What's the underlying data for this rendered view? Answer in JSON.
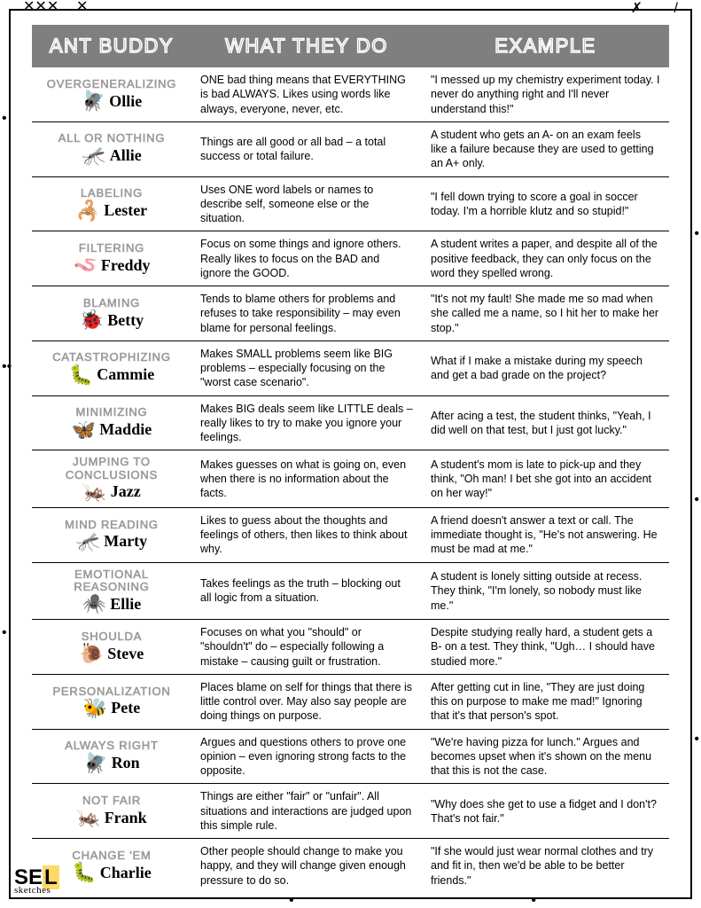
{
  "headers": {
    "col1": "ANT BUDDY",
    "col2": "WHAT THEY DO",
    "col3": "EXAMPLE"
  },
  "colors": {
    "header_bg": "#7f7f7f",
    "header_text": "#ffffff",
    "distortion_text": "#9a9a9a",
    "body_text": "#000000",
    "border": "#000000"
  },
  "rows": [
    {
      "distortion": "OVERGENERALIZING",
      "name": "Ollie",
      "icon": "🪰",
      "desc": "ONE bad thing means that EVERYTHING is bad ALWAYS. Likes using words like always, everyone, never, etc.",
      "example": "\"I messed up my chemistry experiment today. I never do anything right and I'll never understand this!\""
    },
    {
      "distortion": "ALL OR NOTHING",
      "name": "Allie",
      "icon": "🦟",
      "desc": "Things are all good or all bad – a total success or total failure.",
      "example": "A student who gets an A- on an exam feels like a failure because they are used to getting an A+ only."
    },
    {
      "distortion": "LABELING",
      "name": "Lester",
      "icon": "🦂",
      "desc": "Uses ONE word labels or names to describe self, someone else or the situation.",
      "example": "\"I fell down trying to score a goal in soccer today. I'm a horrible klutz and so stupid!\""
    },
    {
      "distortion": "FILTERING",
      "name": "Freddy",
      "icon": "🪱",
      "desc": "Focus on some things and ignore others. Really likes to focus on the BAD and ignore the GOOD.",
      "example": "A student writes a paper, and despite all of the positive feedback, they can only focus on the word they spelled wrong."
    },
    {
      "distortion": "BLAMING",
      "name": "Betty",
      "icon": "🐞",
      "desc": "Tends to blame others for problems and refuses to take responsibility – may even blame for personal feelings.",
      "example": "\"It's not my fault! She made me so mad when she called me a name, so I hit her to make her stop.\""
    },
    {
      "distortion": "CATASTROPHIZING",
      "name": "Cammie",
      "icon": "🐛",
      "desc": "Makes SMALL problems seem like BIG problems – especially focusing on the \"worst case scenario\".",
      "example": "What if I make a mistake during my speech and get a bad grade on the project?"
    },
    {
      "distortion": "MINIMIZING",
      "name": "Maddie",
      "icon": "🦋",
      "desc": "Makes BIG deals seem like LITTLE deals – really likes to try to make you ignore your feelings.",
      "example": "After acing a test, the student thinks, \"Yeah, I did well on that test, but I just got lucky.\""
    },
    {
      "distortion": "JUMPING TO CONCLUSIONS",
      "name": "Jazz",
      "icon": "🦗",
      "desc": "Makes guesses on what is going on, even when there is no information about the facts.",
      "example": "A student's mom is late to pick-up and they think, \"Oh man! I bet she got into an accident on her way!\""
    },
    {
      "distortion": "MIND READING",
      "name": "Marty",
      "icon": "🦟",
      "desc": "Likes to guess about the thoughts and feelings of others, then likes to think about why.",
      "example": "A friend doesn't answer a text or call. The immediate thought is, \"He's not answering. He must be mad at me.\""
    },
    {
      "distortion": "EMOTIONAL REASONING",
      "name": "Ellie",
      "icon": "🕷️",
      "desc": "Takes feelings as the truth – blocking out all logic from a situation.",
      "example": "A student is lonely sitting outside at recess. They think, \"I'm lonely, so nobody must like me.\""
    },
    {
      "distortion": "SHOULDA",
      "name": "Steve",
      "icon": "🐌",
      "desc": "Focuses on what you \"should\" or \"shouldn't\" do – especially following a mistake – causing guilt or frustration.",
      "example": "Despite studying really hard, a student gets a B- on a test. They think, \"Ugh… I should have studied more.\""
    },
    {
      "distortion": "PERSONALIZATION",
      "name": "Pete",
      "icon": "🐝",
      "desc": "Places blame on self for things that there is little control over. May also say people are doing things on purpose.",
      "example": "After getting cut in line, \"They are just doing this on purpose to make me mad!\" Ignoring that it's that person's spot."
    },
    {
      "distortion": "ALWAYS RIGHT",
      "name": "Ron",
      "icon": "🪰",
      "desc": "Argues and questions others to prove one opinion – even ignoring strong facts to the opposite.",
      "example": "\"We're having pizza for lunch.\" Argues and becomes upset when it's shown on the menu that this is not the case."
    },
    {
      "distortion": "NOT FAIR",
      "name": "Frank",
      "icon": "🦗",
      "desc": "Things are either \"fair\" or \"unfair\". All situations and interactions are judged upon this simple rule.",
      "example": "\"Why does she get to use a fidget and I don't? That's not fair.\""
    },
    {
      "distortion": "CHANGE 'EM",
      "name": "Charlie",
      "icon": "🐛",
      "desc": "Other people should change to make you happy, and they will change given enough pressure to do so.",
      "example": "\"If she would just wear normal clothes and try and fit in, then we'd be able to be better friends.\""
    }
  ],
  "logo": {
    "line1": "SEL",
    "line2": "sketches"
  }
}
